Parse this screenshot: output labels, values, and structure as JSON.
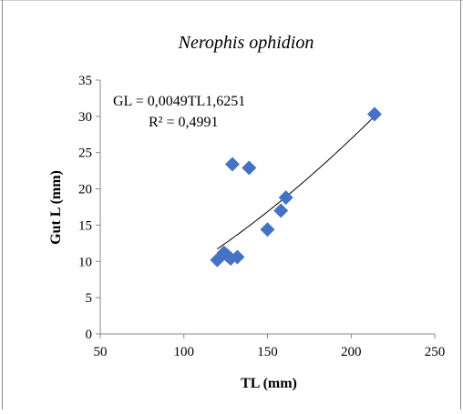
{
  "chart_data": {
    "type": "scatter",
    "title": "Nerophis ophidion",
    "xlabel": "TL (mm)",
    "ylabel": "Gut L (mm)",
    "xlim": [
      50,
      250
    ],
    "ylim": [
      0,
      35
    ],
    "x_ticks": [
      "50",
      "100",
      "150",
      "200",
      "250"
    ],
    "y_ticks": [
      "0",
      "5",
      "10",
      "15",
      "20",
      "25",
      "30",
      "35"
    ],
    "grid": false,
    "legend": "none",
    "marker": "diamond",
    "marker_color": "#4472C4",
    "series": [
      {
        "points": [
          {
            "x": 120,
            "y": 10.2
          },
          {
            "x": 124,
            "y": 11.2
          },
          {
            "x": 126,
            "y": 10.8
          },
          {
            "x": 128,
            "y": 10.4
          },
          {
            "x": 129,
            "y": 23.4
          },
          {
            "x": 132,
            "y": 10.6
          },
          {
            "x": 139,
            "y": 22.9
          },
          {
            "x": 150,
            "y": 14.4
          },
          {
            "x": 158,
            "y": 17.0
          },
          {
            "x": 161,
            "y": 18.8
          },
          {
            "x": 214,
            "y": 30.3
          }
        ]
      }
    ],
    "trendline": {
      "type": "power",
      "a": 0.0049,
      "b": 1.6251,
      "x_range": [
        120,
        214
      ],
      "color": "#000000"
    },
    "annotations": {
      "equation": "GL = 0,0049TL1,6251",
      "r_squared": "R² = 0,4991"
    }
  }
}
